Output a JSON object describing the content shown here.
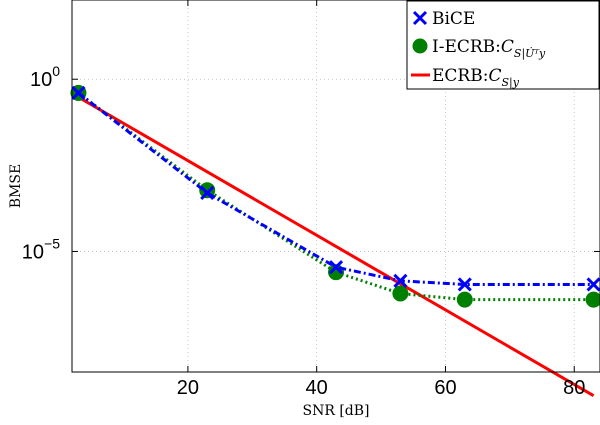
{
  "chart_data": {
    "type": "line",
    "xlabel": "SNR [dB]",
    "ylabel": "BMSE",
    "xlim": [
      2,
      84
    ],
    "ylim_log10": [
      -8.5,
      2.3
    ],
    "y_scale": "log",
    "grid": true,
    "legend_position": "top-right",
    "x_ticks": [
      20,
      40,
      60,
      80
    ],
    "y_ticks": [
      {
        "value": 1,
        "base": "10",
        "exp": "0"
      },
      {
        "value": 1e-05,
        "base": "10",
        "exp": "−5"
      }
    ],
    "series": [
      {
        "name": "BiCE",
        "color": "#0000ff",
        "line_style": "dashdot",
        "marker": "x",
        "x": [
          3,
          23,
          43,
          53,
          63,
          83
        ],
        "y": [
          0.4,
          0.0005,
          3.5e-06,
          1.4e-06,
          1.1e-06,
          1.1e-06
        ]
      },
      {
        "name": "I-ECRB:",
        "name_math": "C",
        "name_subscript": "S|U̇ᵀy",
        "color": "#007f00",
        "line_style": "dotted",
        "marker": "circle",
        "x": [
          3,
          23,
          43,
          53,
          63,
          83
        ],
        "y": [
          0.4,
          0.0006,
          2.5e-06,
          6e-07,
          4e-07,
          4e-07
        ]
      },
      {
        "name": "ECRB:",
        "name_math": "C",
        "name_subscript": "S|y",
        "color": "#ff0000",
        "line_style": "solid",
        "marker": "none",
        "x": [
          3,
          83
        ],
        "y": [
          0.3,
          6.5e-10
        ]
      }
    ]
  }
}
